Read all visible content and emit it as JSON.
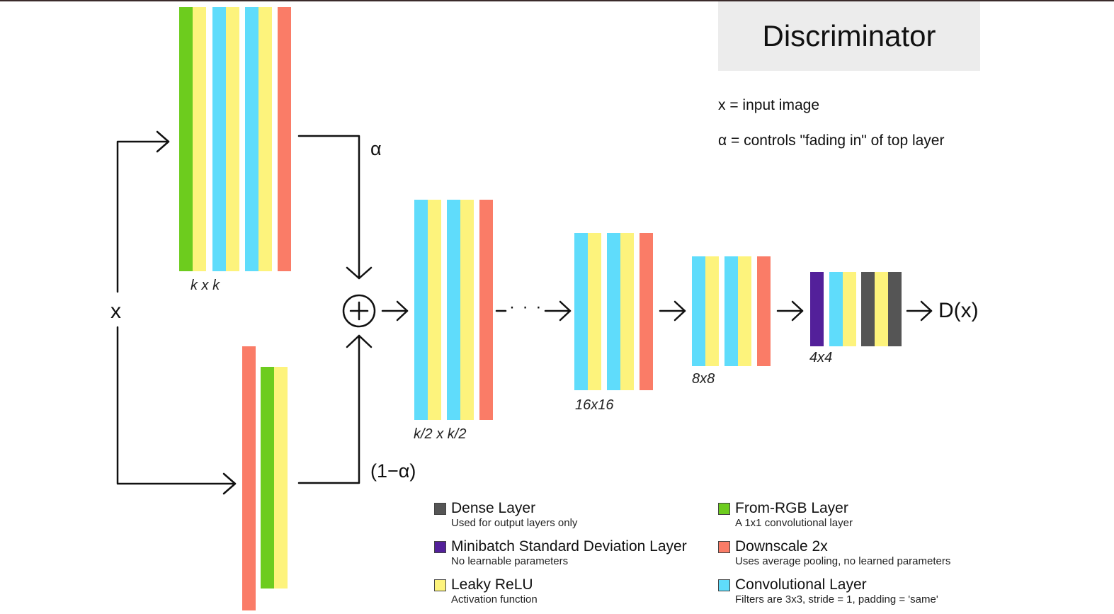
{
  "title": "Discriminator",
  "notes": [
    "x = input image",
    "α = controls \"fading in\" of top layer"
  ],
  "symbols": {
    "input": "x",
    "alpha": "α",
    "one_minus_alpha": "(1−α)",
    "output": "D(x)",
    "dots": "· · ·"
  },
  "colors": {
    "from_rgb": "#6dcc1e",
    "leaky_relu": "#fdf37c",
    "conv": "#5fdcfb",
    "downscale": "#fa7c67",
    "minibatch": "#53209a",
    "dense": "#555555"
  },
  "blocks": [
    {
      "id": "top",
      "label": "k x k",
      "layers": [
        "from_rgb",
        "leaky_relu",
        "conv",
        "leaky_relu",
        "conv",
        "leaky_relu",
        "downscale"
      ]
    },
    {
      "id": "bottom",
      "label": "",
      "layers": [
        "downscale",
        "from_rgb",
        "leaky_relu"
      ]
    },
    {
      "id": "half",
      "label": "k/2 x k/2",
      "layers": [
        "conv",
        "leaky_relu",
        "conv",
        "leaky_relu",
        "downscale"
      ]
    },
    {
      "id": "b16",
      "label": "16x16",
      "layers": [
        "conv",
        "leaky_relu",
        "conv",
        "leaky_relu",
        "downscale"
      ]
    },
    {
      "id": "b8",
      "label": "8x8",
      "layers": [
        "conv",
        "leaky_relu",
        "conv",
        "leaky_relu",
        "downscale"
      ]
    },
    {
      "id": "b4",
      "label": "4x4",
      "layers": [
        "minibatch",
        "conv",
        "leaky_relu",
        "dense",
        "leaky_relu",
        "dense"
      ]
    }
  ],
  "legend": [
    {
      "key": "dense",
      "name": "Dense Layer",
      "desc": "Used for output layers only"
    },
    {
      "key": "minibatch",
      "name": "Minibatch Standard Deviation Layer",
      "desc": "No learnable parameters"
    },
    {
      "key": "leaky_relu",
      "name": "Leaky ReLU",
      "desc": "Activation function"
    },
    {
      "key": "from_rgb",
      "name": "From-RGB Layer",
      "desc": "A 1x1 convolutional layer"
    },
    {
      "key": "downscale",
      "name": "Downscale 2x",
      "desc": "Uses average pooling, no learned parameters"
    },
    {
      "key": "conv",
      "name": "Convolutional Layer",
      "desc": "Filters are 3x3, stride = 1, padding = 'same'"
    }
  ]
}
